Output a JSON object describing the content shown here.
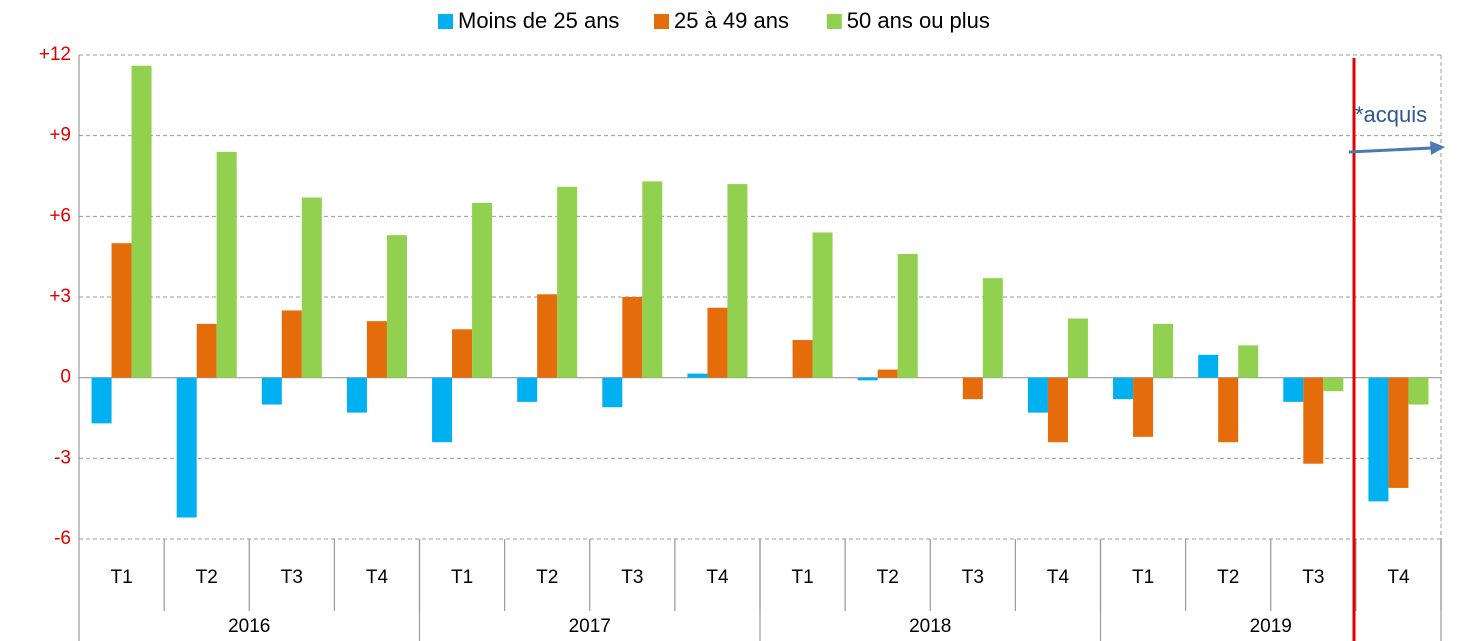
{
  "chart_data": {
    "type": "bar",
    "categories": [
      "T1",
      "T2",
      "T3",
      "T4",
      "T1",
      "T2",
      "T3",
      "T4",
      "T1",
      "T2",
      "T3",
      "T4",
      "T1",
      "T2",
      "T3",
      "T4"
    ],
    "years": [
      "2016",
      "2017",
      "2018",
      "2019"
    ],
    "series": [
      {
        "name": "Moins de 25 ans",
        "color": "#00b0f0",
        "values": [
          -1.7,
          -5.2,
          -1.0,
          -1.3,
          -2.4,
          -0.9,
          -1.1,
          0.15,
          0,
          -0.1,
          0,
          -1.3,
          -0.8,
          0.85,
          -0.9,
          -4.6
        ]
      },
      {
        "name": "25 à 49 ans",
        "color": "#e46c0a",
        "values": [
          5.0,
          2.0,
          2.5,
          2.1,
          1.8,
          3.1,
          3.0,
          2.6,
          1.4,
          0.3,
          -0.8,
          -2.4,
          -2.2,
          -2.4,
          -3.2,
          -4.1
        ]
      },
      {
        "name": "50 ans ou plus",
        "color": "#92d050",
        "values": [
          11.6,
          8.4,
          6.7,
          5.3,
          6.5,
          7.1,
          7.3,
          7.2,
          5.4,
          4.6,
          3.7,
          2.2,
          2.0,
          1.2,
          -0.5,
          -1.0
        ]
      }
    ],
    "ylim": [
      -6,
      12
    ],
    "yticks": [
      {
        "value": 12,
        "label": "+12"
      },
      {
        "value": 9,
        "label": "+9"
      },
      {
        "value": 6,
        "label": "+6"
      },
      {
        "value": 3,
        "label": "+3"
      },
      0,
      -3,
      -6
    ],
    "grid": true,
    "legend": "top",
    "annotation": "*acquis"
  }
}
